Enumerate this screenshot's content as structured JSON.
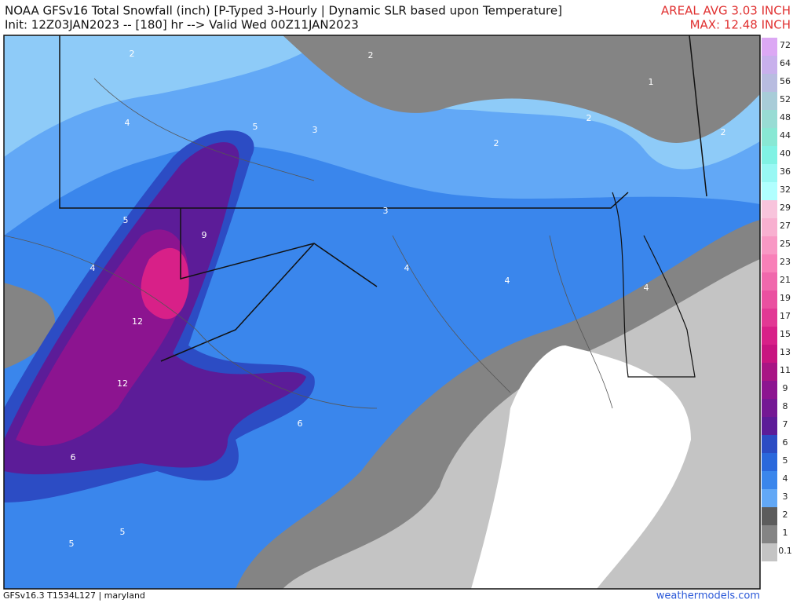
{
  "header": {
    "title_line1": "NOAA GFSv16 Total Snowfall (inch) [P-Typed 3-Hourly | Dynamic SLR based upon Temperature]",
    "title_line2": "Init: 12Z03JAN2023 -- [180] hr --> Valid Wed 00Z11JAN2023",
    "areal_avg": "AREAL AVG 3.03 INCH",
    "max": "MAX: 12.48 INCH"
  },
  "colorbar": {
    "labels": [
      "72",
      "64",
      "56",
      "52",
      "48",
      "44",
      "40",
      "36",
      "32",
      "29",
      "27",
      "25",
      "23",
      "21",
      "19",
      "17",
      "15",
      "13",
      "11",
      "9",
      "8",
      "7",
      "6",
      "5",
      "4",
      "3",
      "2",
      "1",
      "0.1"
    ],
    "colors": [
      "#dca8f4",
      "#c8b0ec",
      "#b8bce0",
      "#a8ccd8",
      "#98dcd4",
      "#88e8d4",
      "#80f2e4",
      "#98f8f4",
      "#b0ffff",
      "#f8c4dc",
      "#f8b0d0",
      "#f898c4",
      "#f880b8",
      "#f068ac",
      "#ea50a0",
      "#e23894",
      "#d82088",
      "#c81480",
      "#a81484",
      "#8c1490",
      "#741894",
      "#5c1c98",
      "#2c4cc4",
      "#2a68dc",
      "#3a86ec",
      "#62a8f6",
      "#5c5c5c",
      "#848484",
      "#c4c4c4"
    ]
  },
  "map": {
    "labels": [
      "2",
      "2",
      "1",
      "2",
      "2",
      "2",
      "4",
      "5",
      "3",
      "3",
      "5",
      "9",
      "4",
      "4",
      "4",
      "4",
      "12",
      "12",
      "6",
      "6",
      "5",
      "5"
    ]
  },
  "footer": {
    "run": "GFSv16.3 T1534L127 | maryland",
    "site": "weathermodels.com"
  }
}
